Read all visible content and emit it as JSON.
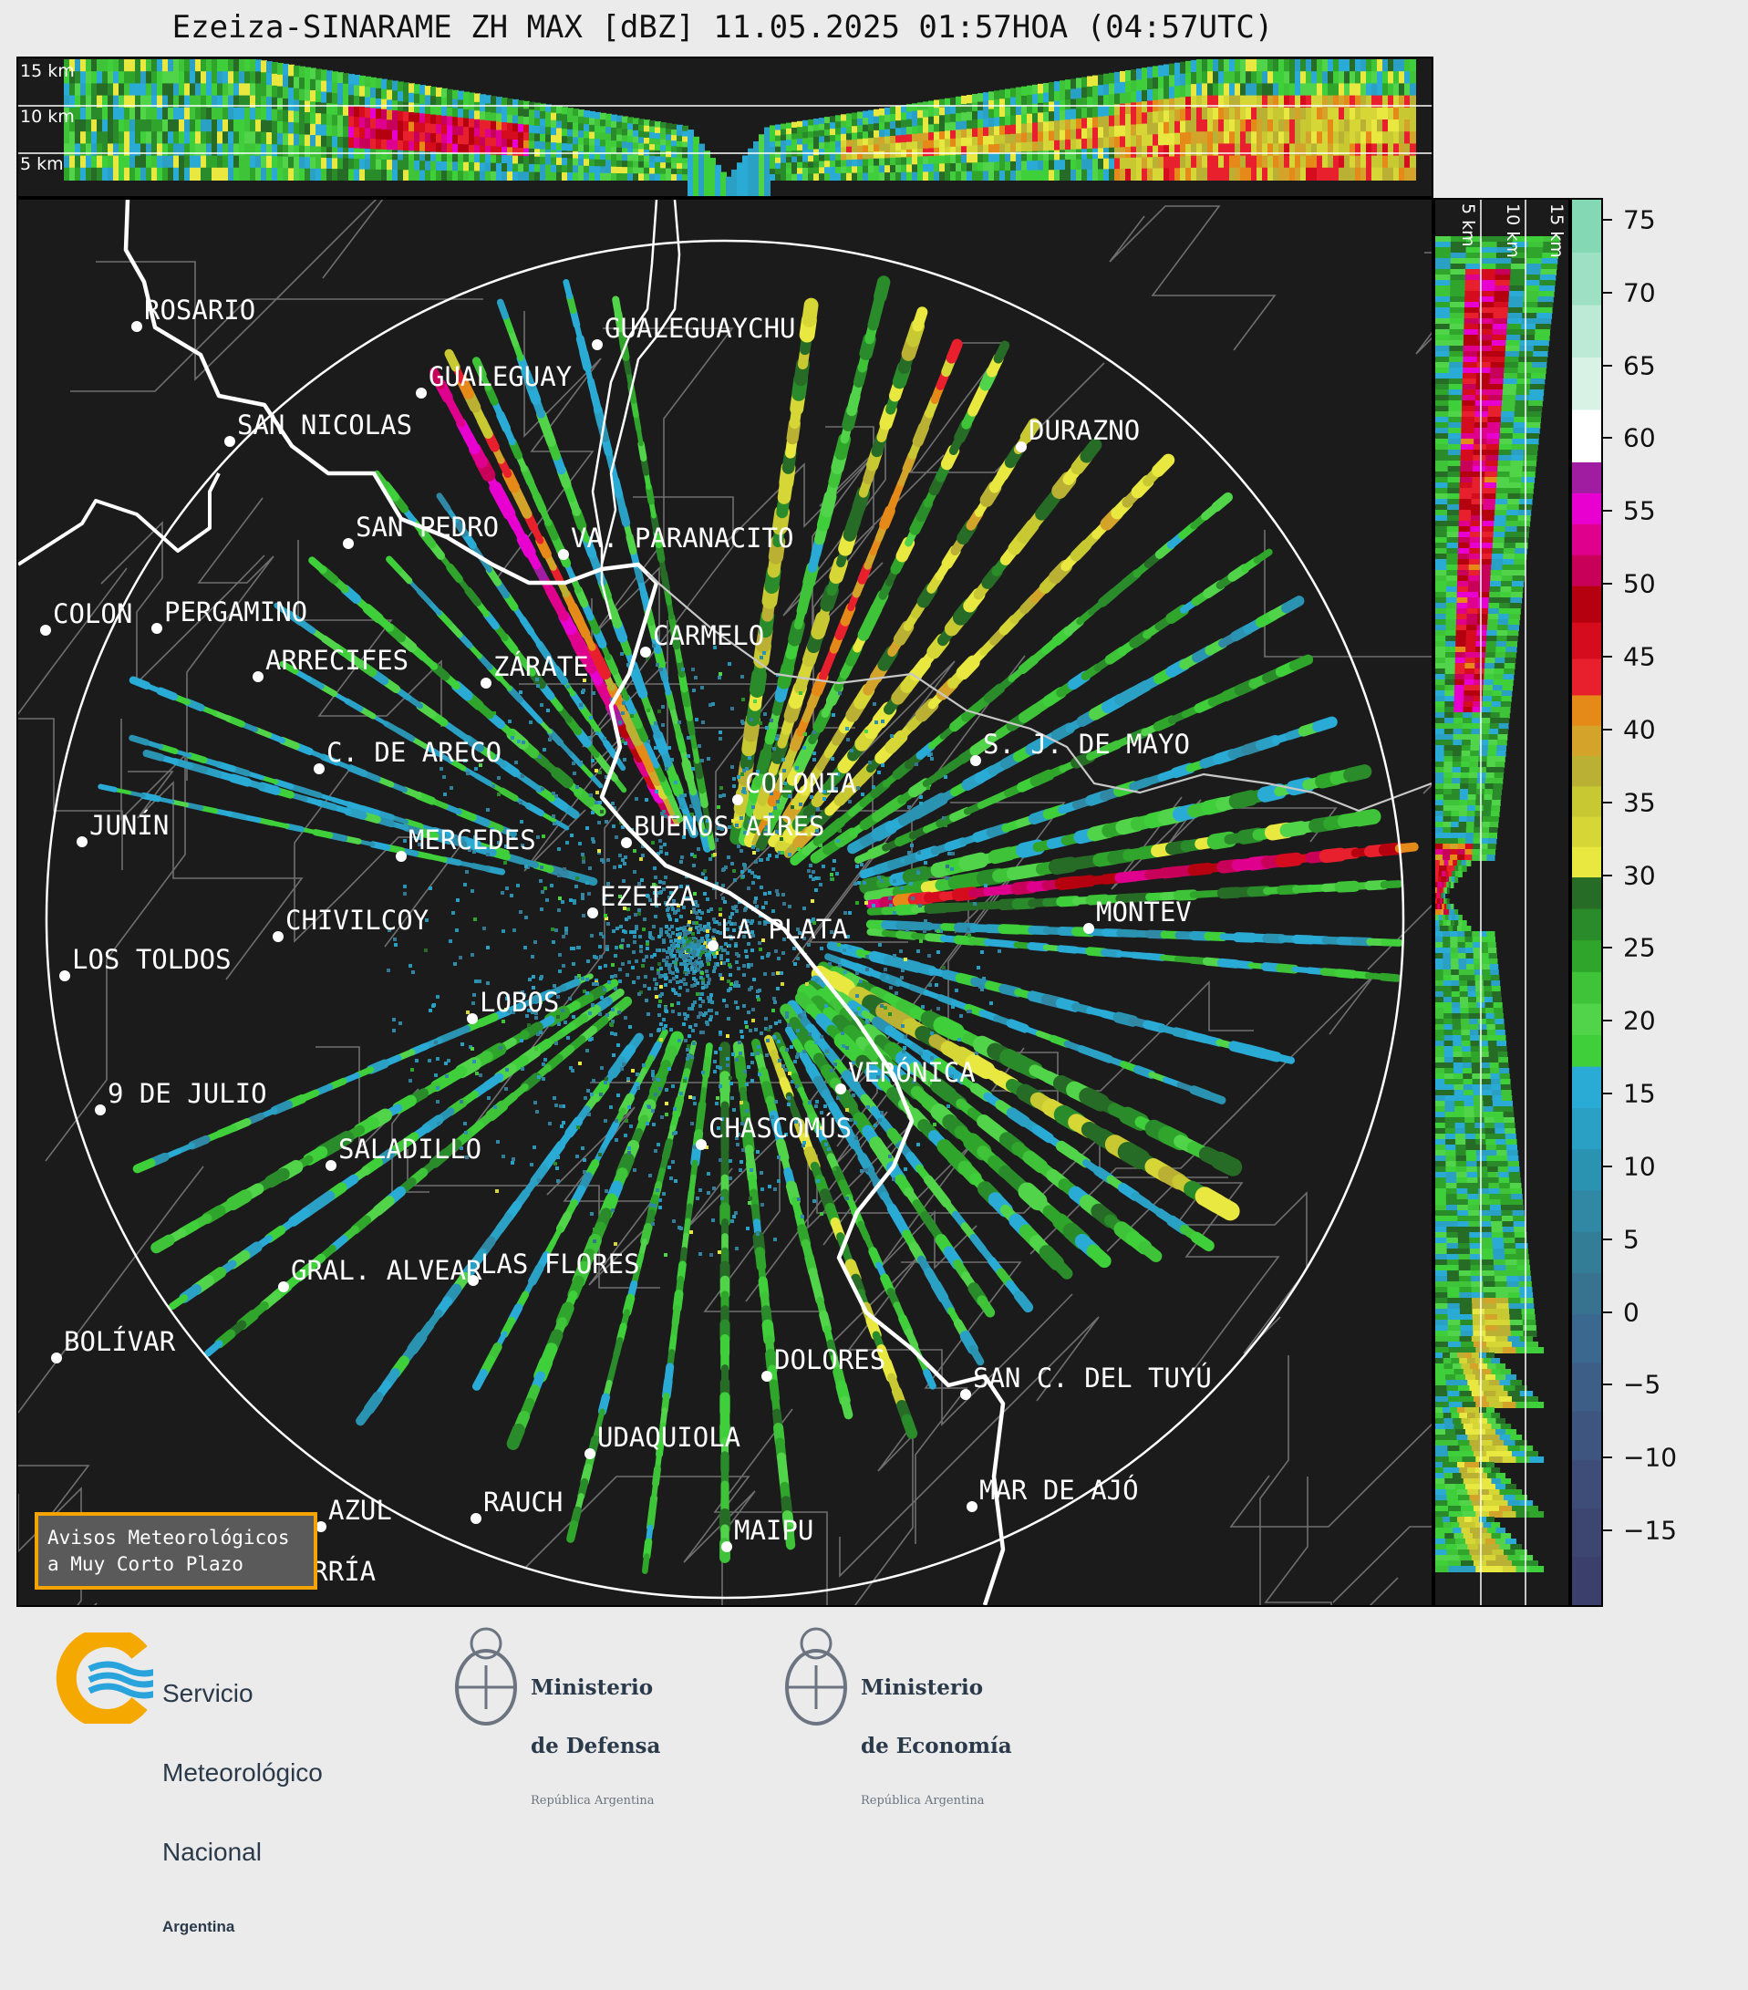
{
  "title": "Ezeiza-SINARAME ZH MAX [dBZ] 11.05.2025 01:57HOA (04:57UTC)",
  "height_labels": {
    "top": [
      "15 km",
      "10 km",
      "5 km"
    ],
    "side": [
      "5 km",
      "10 km",
      "15 km"
    ]
  },
  "colorbar": {
    "ticks": [
      "75",
      "70",
      "65",
      "60",
      "55",
      "50",
      "45",
      "40",
      "35",
      "30",
      "25",
      "20",
      "15",
      "10",
      "5",
      "0",
      "−5",
      "−10",
      "−15"
    ],
    "range": [
      -20,
      76.5
    ],
    "bands": [
      {
        "from": -20,
        "to": 0,
        "colors": [
          "#3b3f6b",
          "#3d4670",
          "#3e4d77",
          "#3e567f",
          "#3d5f87",
          "#3a688f"
        ]
      },
      {
        "from": 0,
        "to": 17,
        "colors": [
          "#37728f",
          "#347d97",
          "#3088a4",
          "#2b93b2",
          "#2aa0c4",
          "#2aabd6"
        ]
      },
      {
        "from": 17,
        "to": 30,
        "colors": [
          "#3ecf3a",
          "#52d44a",
          "#3fc339",
          "#2fa62b",
          "#2a8b2a",
          "#276c26"
        ]
      },
      {
        "from": 30,
        "to": 42.5,
        "colors": [
          "#e8e840",
          "#d6d636",
          "#c8c832",
          "#bab034",
          "#d4a42a",
          "#e58a18"
        ]
      },
      {
        "from": 42.5,
        "to": 50,
        "colors": [
          "#e8202e",
          "#d40c1e",
          "#b5000f"
        ]
      },
      {
        "from": 50,
        "to": 58.5,
        "colors": [
          "#c8005a",
          "#e0008e",
          "#e800d0",
          "#a01ca0"
        ]
      },
      {
        "from": 58.5,
        "to": 76.5,
        "colors": [
          "#ffffff",
          "#d8f2e6",
          "#bde9d7",
          "#9de0c4",
          "#84d8b4"
        ]
      }
    ]
  },
  "radar": {
    "center": "EZEIZA",
    "range_ring": true
  },
  "cities": [
    {
      "name": "ROSARIO"
    },
    {
      "name": "GUALEGUAYCHU"
    },
    {
      "name": "GUALEGUAY"
    },
    {
      "name": "SAN NICOLAS"
    },
    {
      "name": "DURAZNO"
    },
    {
      "name": "SAN PEDRO"
    },
    {
      "name": "VA. PARANACITO"
    },
    {
      "name": "COLON"
    },
    {
      "name": "PERGAMINO"
    },
    {
      "name": "CARMELO"
    },
    {
      "name": "ARRECIFES"
    },
    {
      "name": "ZÁRATE"
    },
    {
      "name": "C. DE ARECO"
    },
    {
      "name": "S. J. DE MAYO"
    },
    {
      "name": "COLONIA"
    },
    {
      "name": "BUENOS AIRES"
    },
    {
      "name": "JUNÍN"
    },
    {
      "name": "MERCEDES"
    },
    {
      "name": "EZEIZA"
    },
    {
      "name": "MONTEV"
    },
    {
      "name": "CHIVILCOY"
    },
    {
      "name": "LA PLATA"
    },
    {
      "name": "LOS TOLDOS"
    },
    {
      "name": "LOBOS"
    },
    {
      "name": "VERÓNICA"
    },
    {
      "name": "9 DE JULIO"
    },
    {
      "name": "CHASCOMÚS"
    },
    {
      "name": "SALADILLO"
    },
    {
      "name": "GRAL. ALVEAR"
    },
    {
      "name": "LAS FLORES"
    },
    {
      "name": "BOLÍVAR"
    },
    {
      "name": "DOLORES"
    },
    {
      "name": "SAN C. DEL TUYÚ"
    },
    {
      "name": "UDAQUIOLA"
    },
    {
      "name": "MAR DE AJÓ"
    },
    {
      "name": "AZUL"
    },
    {
      "name": "RAUCH"
    },
    {
      "name": "MAIPU"
    },
    {
      "name": "OLAVARRÍA"
    }
  ],
  "notice": {
    "line1": "Avisos Meteorológicos",
    "line2": "a Muy Corto Plazo"
  },
  "logos": {
    "smn": [
      "Servicio",
      "Meteorológico",
      "Nacional",
      "Argentina"
    ],
    "defensa": [
      "Ministerio",
      "de Defensa",
      "República Argentina"
    ],
    "economia": [
      "Ministerio",
      "de Economía",
      "República Argentina"
    ]
  }
}
